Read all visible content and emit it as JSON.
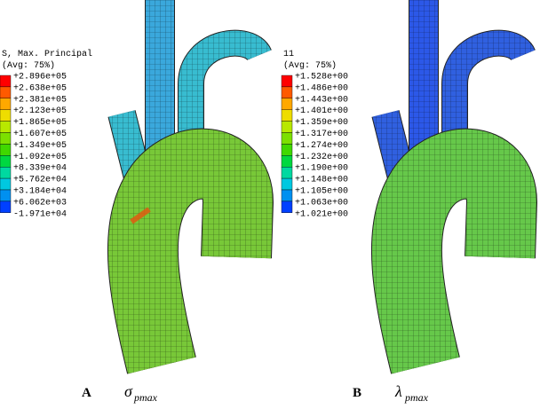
{
  "panels": [
    {
      "legend": {
        "title": "S, Max. Principal",
        "subtitle": "(Avg: 75%)",
        "labels": [
          "+2.896e+05",
          "+2.638e+05",
          "+2.381e+05",
          "+2.123e+05",
          "+1.865e+05",
          "+1.607e+05",
          "+1.349e+05",
          "+1.092e+05",
          "+8.339e+04",
          "+5.762e+04",
          "+3.184e+04",
          "+6.062e+03",
          "-1.971e+04"
        ]
      },
      "caption": {
        "letter": "A",
        "symbol": "σ",
        "subscript": "pmax"
      }
    },
    {
      "legend": {
        "title": "11",
        "subtitle": "(Avg: 75%)",
        "labels": [
          "+1.528e+00",
          "+1.486e+00",
          "+1.443e+00",
          "+1.401e+00",
          "+1.359e+00",
          "+1.317e+00",
          "+1.274e+00",
          "+1.232e+00",
          "+1.190e+00",
          "+1.148e+00",
          "+1.105e+00",
          "+1.063e+00",
          "+1.021e+00"
        ]
      },
      "caption": {
        "letter": "B",
        "symbol": "λ",
        "subscript": "pmax"
      }
    }
  ]
}
